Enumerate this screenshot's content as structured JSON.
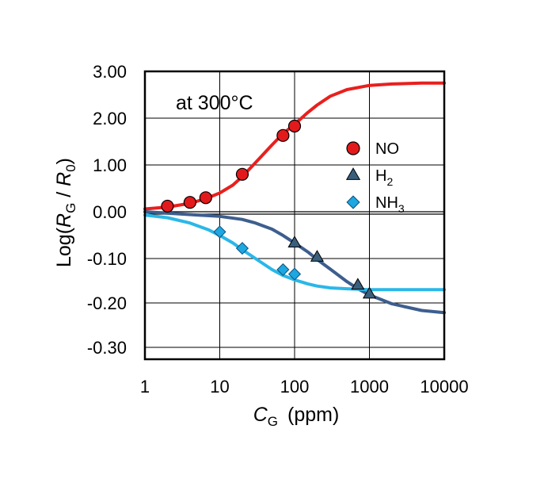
{
  "chart_data": {
    "type": "scatter",
    "annotation": "at 300°C",
    "xlabel": {
      "main": "C",
      "sub": "G",
      "unit": "(ppm)"
    },
    "ylabel": {
      "prefix": "Log(",
      "num": "R",
      "num_sub": "G",
      "sep": " / ",
      "den": "R",
      "den_sub": "0",
      "suffix": ")"
    },
    "xscale": "log",
    "xlim": [
      1,
      10000
    ],
    "x_ticks": [
      "1",
      "10",
      "100",
      "1000",
      "10000"
    ],
    "y_axis_note": "broken axis: upper panel 0.00-3.00, lower panel 0.00 to -0.30",
    "y_ticks": [
      "3.00",
      "2.00",
      "1.00",
      "0.00",
      "-0.10",
      "-0.20",
      "-0.30"
    ],
    "grid": true,
    "legend_position": "right, upper-middle",
    "series": [
      {
        "name": "NO",
        "sub": "",
        "marker": "circle",
        "color": "#e31a1c",
        "line_color": "#e8201e",
        "points": [
          [
            2,
            0.12
          ],
          [
            4,
            0.2
          ],
          [
            6.5,
            0.3
          ],
          [
            20,
            0.8
          ],
          [
            70,
            1.63
          ],
          [
            100,
            1.83
          ]
        ],
        "fit": [
          [
            1,
            0.06
          ],
          [
            2,
            0.1
          ],
          [
            4,
            0.18
          ],
          [
            6.5,
            0.28
          ],
          [
            10,
            0.4
          ],
          [
            15,
            0.57
          ],
          [
            20,
            0.75
          ],
          [
            30,
            1.05
          ],
          [
            50,
            1.43
          ],
          [
            70,
            1.67
          ],
          [
            100,
            1.87
          ],
          [
            150,
            2.12
          ],
          [
            200,
            2.28
          ],
          [
            300,
            2.47
          ],
          [
            500,
            2.61
          ],
          [
            1000,
            2.7
          ],
          [
            2000,
            2.73
          ],
          [
            5000,
            2.75
          ],
          [
            10000,
            2.75
          ]
        ]
      },
      {
        "name": "H",
        "sub": "2",
        "marker": "triangle",
        "color": "#3a5f7d",
        "line_color": "#3d5e8e",
        "points": [
          [
            100,
            -0.065
          ],
          [
            200,
            -0.097
          ],
          [
            700,
            -0.16
          ],
          [
            1000,
            -0.18
          ]
        ],
        "fit": [
          [
            1,
            0.0
          ],
          [
            5,
            -0.002
          ],
          [
            10,
            -0.005
          ],
          [
            20,
            -0.012
          ],
          [
            30,
            -0.02
          ],
          [
            50,
            -0.034
          ],
          [
            70,
            -0.048
          ],
          [
            100,
            -0.065
          ],
          [
            150,
            -0.085
          ],
          [
            200,
            -0.102
          ],
          [
            300,
            -0.124
          ],
          [
            500,
            -0.152
          ],
          [
            700,
            -0.168
          ],
          [
            1000,
            -0.182
          ],
          [
            2000,
            -0.202
          ],
          [
            5000,
            -0.217
          ],
          [
            10000,
            -0.222
          ]
        ]
      },
      {
        "name": "NH",
        "sub": "3",
        "marker": "diamond",
        "color": "#1ea7e1",
        "line_color": "#2bb7e8",
        "points": [
          [
            10,
            -0.04
          ],
          [
            20,
            -0.077
          ],
          [
            70,
            -0.125
          ],
          [
            100,
            -0.135
          ]
        ],
        "fit": [
          [
            1,
            -0.002
          ],
          [
            2,
            -0.008
          ],
          [
            4,
            -0.02
          ],
          [
            7,
            -0.035
          ],
          [
            10,
            -0.048
          ],
          [
            15,
            -0.065
          ],
          [
            20,
            -0.08
          ],
          [
            30,
            -0.1
          ],
          [
            50,
            -0.125
          ],
          [
            70,
            -0.138
          ],
          [
            100,
            -0.148
          ],
          [
            150,
            -0.157
          ],
          [
            200,
            -0.162
          ],
          [
            300,
            -0.166
          ],
          [
            500,
            -0.168
          ],
          [
            1000,
            -0.17
          ],
          [
            10000,
            -0.17
          ]
        ]
      }
    ]
  }
}
